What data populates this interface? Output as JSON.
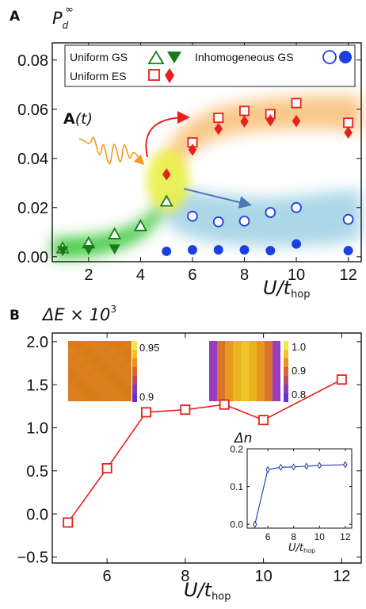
{
  "panel_a": {
    "label": "A",
    "ylabel_main": "P",
    "ylabel_sub": "d",
    "ylabel_sup": "∞",
    "xlabel_main": "U/t",
    "xlabel_sub": "hop",
    "annotation_main": "A",
    "annotation_arg": "(t)",
    "legend": {
      "uniform_gs": "Uniform GS",
      "uniform_es": "Uniform ES",
      "inhomogeneous_gs": "Inhomogeneous GS"
    }
  },
  "panel_b": {
    "label": "B",
    "ylabel_main": "ΔE × 10",
    "ylabel_sup": "3",
    "xlabel_main": "U/t",
    "xlabel_sub": "hop",
    "heatmap_left_ticks": [
      "0.95",
      "0.9"
    ],
    "heatmap_right_ticks": [
      "1.0",
      "0.9",
      "0.8"
    ],
    "inset": {
      "ylabel": "Δn",
      "xlabel_main": "U/t",
      "xlabel_sub": "hop"
    }
  },
  "colors": {
    "green": "#1a7a1a",
    "red": "#e8201c",
    "blue": "#1d3fe0",
    "inset_blue": "#2233aa"
  },
  "chart_data": [
    {
      "type": "scatter",
      "xlim": [
        0.6,
        12.5
      ],
      "ylim": [
        -0.002,
        0.087
      ],
      "x_ticks": [
        2,
        4,
        6,
        8,
        10,
        12
      ],
      "y_ticks": [
        0.0,
        0.02,
        0.04,
        0.06,
        0.08
      ],
      "y_tick_labels": [
        "0.00",
        "0.02",
        "0.04",
        "0.06",
        "0.08"
      ],
      "legend_position": "top",
      "series": [
        {
          "name": "Uniform GS",
          "marker": "triangle-up-open",
          "color": "#1a7a1a",
          "x": [
            1,
            2,
            3,
            4,
            5
          ],
          "y": [
            0.0035,
            0.0055,
            0.0092,
            0.0125,
            0.0225
          ]
        },
        {
          "name": "Uniform GS",
          "marker": "triangle-down-filled",
          "color": "#1a7a1a",
          "x": [
            1,
            2,
            3
          ],
          "y": [
            0.0025,
            0.003,
            0.0032
          ]
        },
        {
          "name": "Uniform ES",
          "marker": "square-open",
          "color": "#e8201c",
          "x": [
            6,
            7,
            8,
            9,
            10,
            12
          ],
          "y": [
            0.0465,
            0.0565,
            0.0593,
            0.058,
            0.0625,
            0.0545
          ]
        },
        {
          "name": "Uniform ES",
          "marker": "diamond-filled",
          "color": "#e8201c",
          "x": [
            5,
            6,
            7,
            8,
            9,
            10,
            12
          ],
          "y": [
            0.0335,
            0.0435,
            0.052,
            0.055,
            0.0555,
            0.0552,
            0.0505
          ]
        },
        {
          "name": "Inhomogeneous GS",
          "marker": "circle-open",
          "color": "#1d3fe0",
          "x": [
            6,
            7,
            8,
            9,
            10,
            12
          ],
          "y": [
            0.0165,
            0.0142,
            0.0145,
            0.018,
            0.02,
            0.0152
          ]
        },
        {
          "name": "Inhomogeneous GS",
          "marker": "circle-filled",
          "color": "#1d3fe0",
          "x": [
            5,
            6,
            7,
            8,
            9,
            10,
            12
          ],
          "y": [
            0.0022,
            0.0028,
            0.0028,
            0.0028,
            0.0025,
            0.0052,
            0.0025
          ]
        }
      ]
    },
    {
      "type": "line",
      "xlim": [
        4.6,
        12.5
      ],
      "ylim": [
        -0.57,
        2.1
      ],
      "x_ticks": [
        6,
        8,
        10,
        12
      ],
      "y_ticks": [
        -0.5,
        0.0,
        0.5,
        1.0,
        1.5,
        2.0
      ],
      "y_tick_labels": [
        "−0.5",
        "0.0",
        "0.5",
        "1.0",
        "1.5",
        "2.0"
      ],
      "series": [
        {
          "marker": "square-open",
          "color": "#e8201c",
          "x": [
            5,
            6,
            7,
            8,
            9,
            10,
            12
          ],
          "y": [
            -0.1,
            0.53,
            1.18,
            1.21,
            1.27,
            1.09,
            1.56
          ]
        }
      ]
    },
    {
      "type": "line",
      "xlim": [
        4.4,
        12.5
      ],
      "ylim": [
        -0.01,
        0.2
      ],
      "x_ticks": [
        6,
        8,
        10,
        12
      ],
      "y_ticks": [
        0.0,
        0.1,
        0.2
      ],
      "y_tick_labels": [
        "0.0",
        "0.1",
        "0.2"
      ],
      "series": [
        {
          "marker": "diamond-open",
          "color": "#2233aa",
          "x": [
            5,
            6,
            7,
            8,
            9,
            10,
            12
          ],
          "y": [
            0.0,
            0.145,
            0.151,
            0.152,
            0.154,
            0.156,
            0.158
          ]
        }
      ]
    }
  ]
}
